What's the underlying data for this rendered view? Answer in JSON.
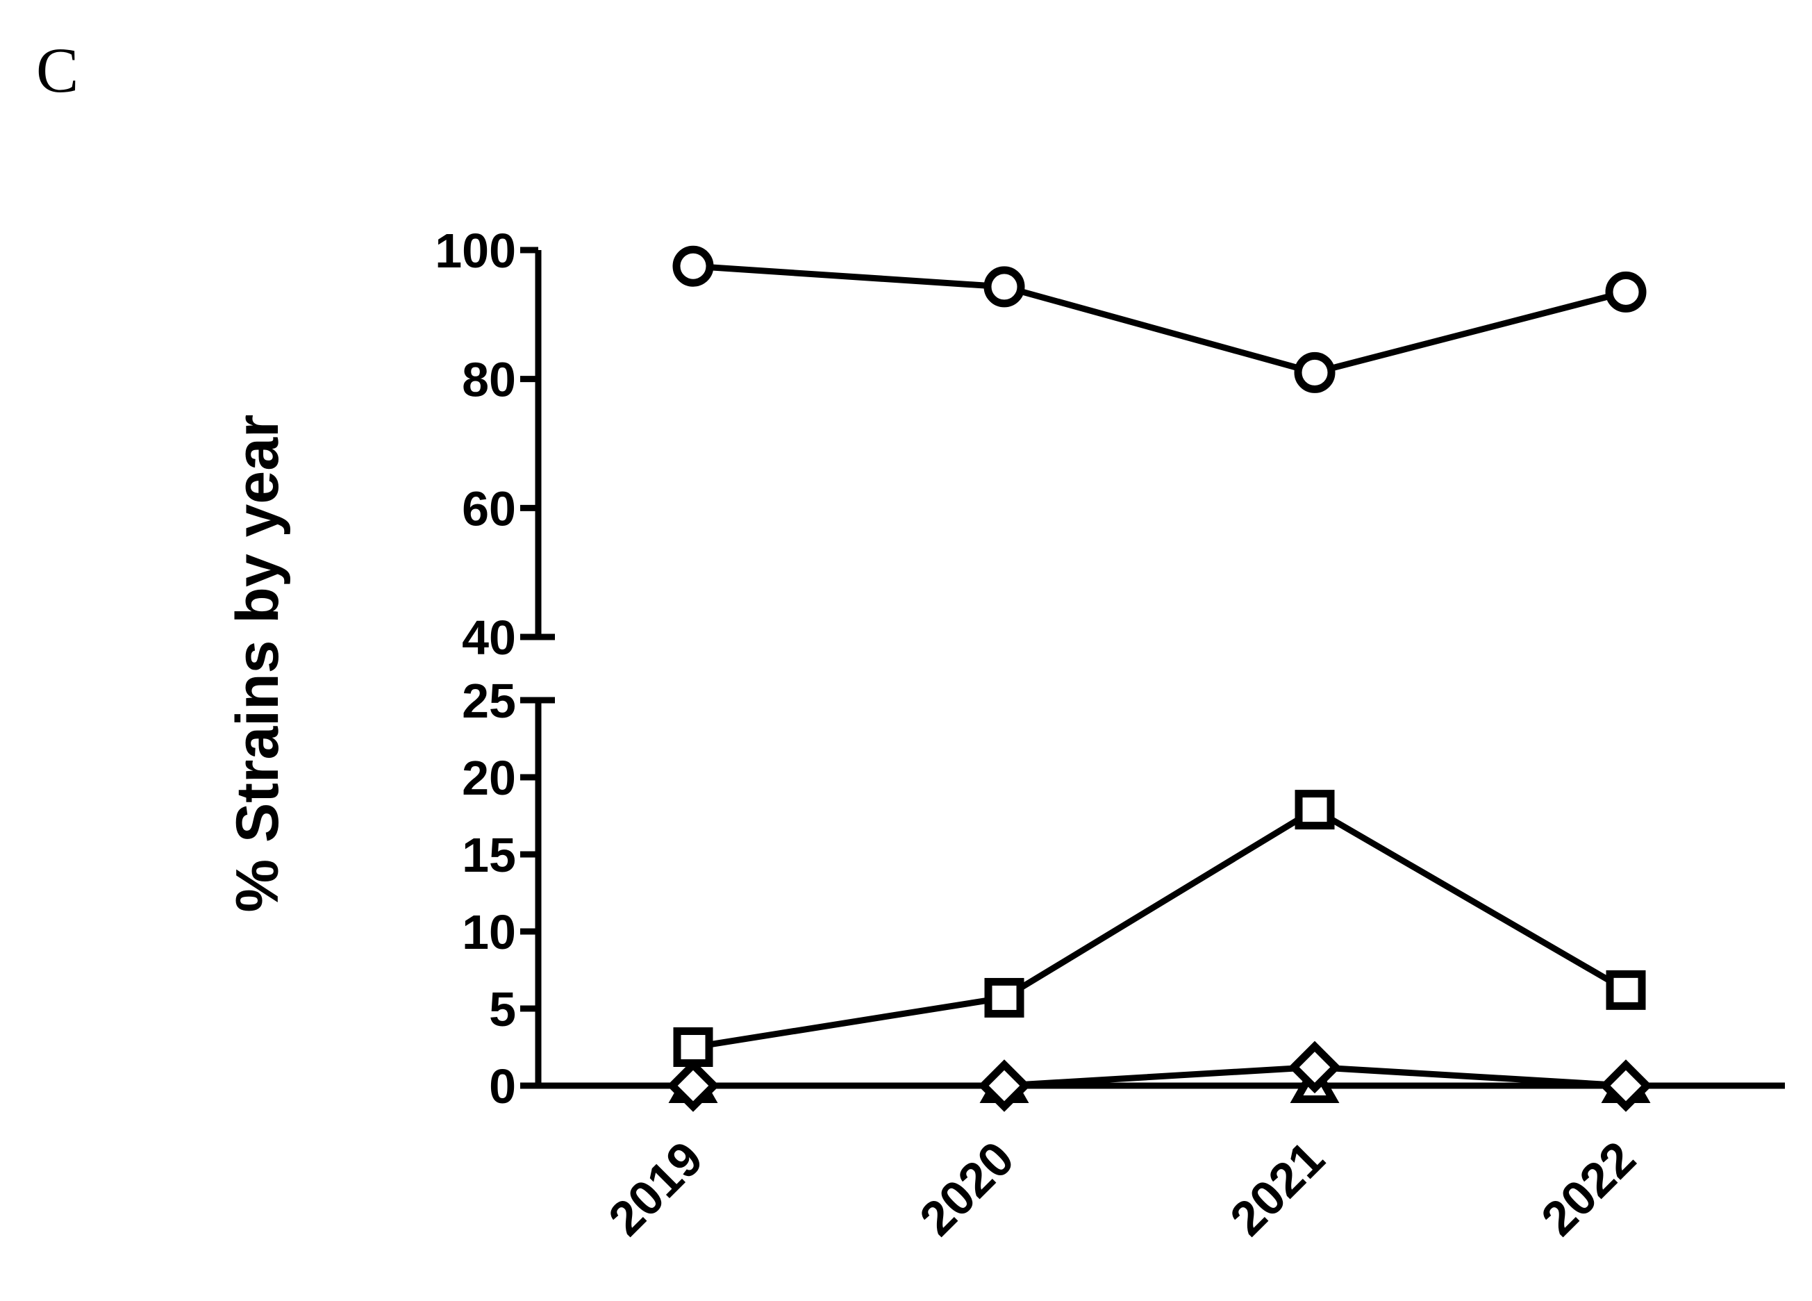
{
  "panel": {
    "letter": "C"
  },
  "chart_data": {
    "type": "line",
    "title": "",
    "xlabel": "",
    "ylabel": "% Strains by year",
    "categories": [
      "2019",
      "2020",
      "2021",
      "2022"
    ],
    "y_axis_break": {
      "lower_range": [
        0,
        25
      ],
      "upper_range": [
        40,
        100
      ]
    },
    "y_ticks_lower": [
      "0",
      "5",
      "10",
      "15",
      "20",
      "25"
    ],
    "y_ticks_upper": [
      "40",
      "60",
      "80",
      "100"
    ],
    "grid": false,
    "legend": "none",
    "series": [
      {
        "marker": "circle",
        "values": [
          97.5,
          94.3,
          81.0,
          93.5
        ]
      },
      {
        "marker": "square",
        "values": [
          2.5,
          5.7,
          17.9,
          6.2
        ]
      },
      {
        "marker": "diamond",
        "values": [
          0,
          0,
          1.2,
          0
        ]
      },
      {
        "marker": "triangle",
        "values": [
          0,
          0,
          0,
          0
        ]
      }
    ]
  }
}
